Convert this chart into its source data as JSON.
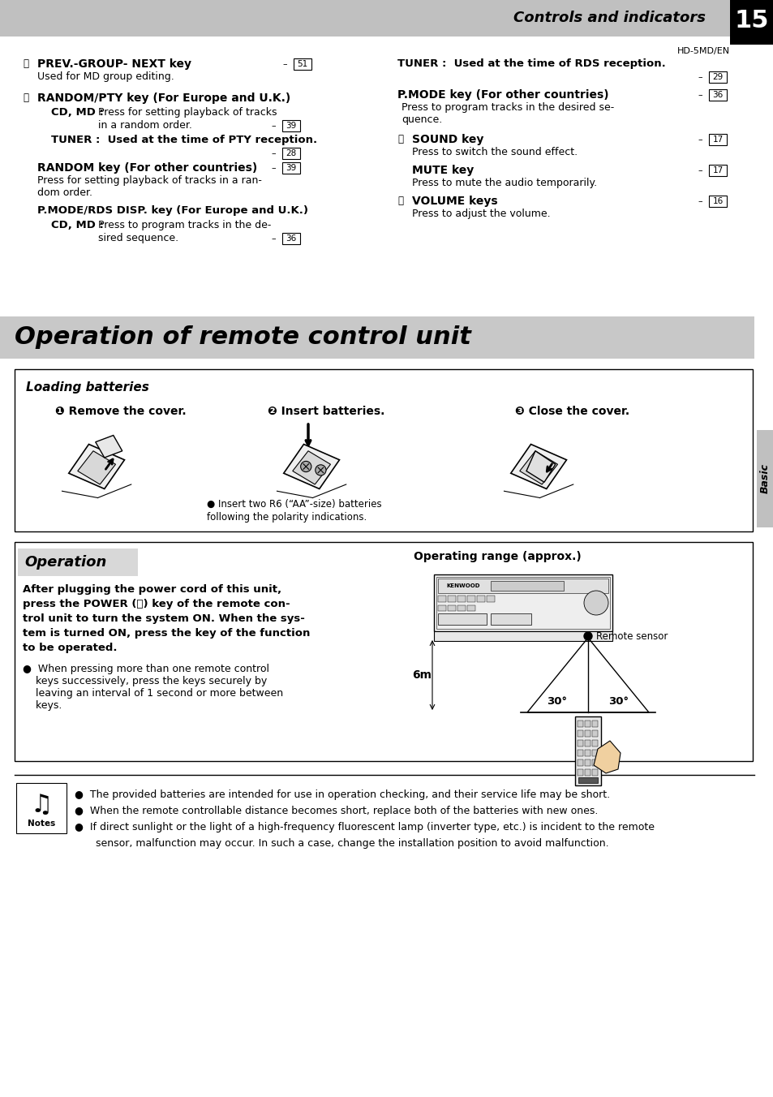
{
  "page_bg": "#ffffff",
  "header_text": "Controls and indicators",
  "page_num": "15",
  "model": "HD-5MD/EN",
  "section_title": "Operation of remote control unit",
  "tab_text": "Basic",
  "loading_title": "Loading batteries",
  "step1_label": "❶ Remove the cover.",
  "step2_label": "❷ Insert batteries.",
  "step3_label": "❸ Close the cover.",
  "battery_note_line1": "● Insert two R6 (“AA”-size) batteries",
  "battery_note_line2": "following the polarity indications.",
  "operation_title": "Operation",
  "operation_range_title": "Operating range (approx.)",
  "op_line1": "After plugging the power cord of this unit,",
  "op_line2": "press the POWER (⏻) key of the remote con-",
  "op_line3": "trol unit to turn the system ON. When the sys-",
  "op_line4": "tem is turned ON, press the key of the function",
  "op_line5": "to be operated.",
  "op_bullet_lines": [
    "●  When pressing more than one remote control",
    "    keys successively, press the keys securely by",
    "    leaving an interval of 1 second or more between",
    "    keys."
  ],
  "remote_sensor_label": "Remote sensor",
  "distance_label": "6m",
  "angle_label1": "30°",
  "angle_label2": "30°",
  "notes_bullets": [
    "The provided batteries are intended for use in operation checking, and their service life may be short.",
    "When the remote controllable distance becomes short, replace both of the batteries with new ones.",
    "If direct sunlight or the light of a high-frequency fluorescent lamp (inverter type, etc.) is incident to the remote",
    "sensor, malfunction may occur. In such a case, change the installation position to avoid malfunction."
  ]
}
